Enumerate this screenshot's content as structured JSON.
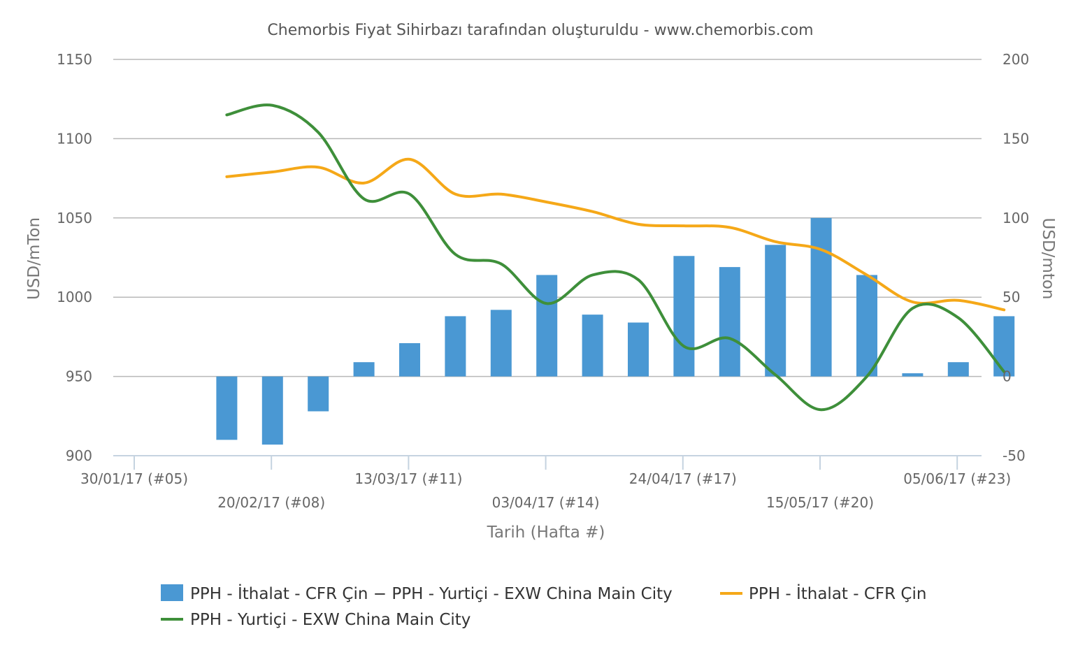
{
  "chart_data": {
    "type": "bar+line",
    "title": "Chemorbis Fiyat Sihirbazı tarafından oluşturuldu - www.chemorbis.com",
    "xlabel": "Tarih (Hafta #)",
    "ylabel_left": "USD/mTon",
    "ylabel_right": "USD/mton",
    "ylim_left": [
      900,
      1150
    ],
    "ylim_right": [
      -50,
      200
    ],
    "yticks_left": [
      "1150",
      "1100",
      "1050",
      "1000",
      "950",
      "900"
    ],
    "yticks_right": [
      "200",
      "150",
      "100",
      "50",
      "0",
      "-50"
    ],
    "xtick_labels": [
      {
        "label": "30/01/17 (#05)",
        "week_index": 0,
        "row": 1
      },
      {
        "label": "20/02/17 (#08)",
        "week_index": 3,
        "row": 2
      },
      {
        "label": "13/03/17 (#11)",
        "week_index": 6,
        "row": 1
      },
      {
        "label": "03/04/17 (#14)",
        "week_index": 9,
        "row": 2
      },
      {
        "label": "24/04/17 (#17)",
        "week_index": 12,
        "row": 1
      },
      {
        "label": "15/05/17 (#20)",
        "week_index": 15,
        "row": 2
      },
      {
        "label": "05/06/17 (#23)",
        "week_index": 18,
        "row": 1
      }
    ],
    "weeks": [
      "#05",
      "#06",
      "#07",
      "#08",
      "#09",
      "#10",
      "#11",
      "#12",
      "#13",
      "#14",
      "#15",
      "#16",
      "#17",
      "#18",
      "#19",
      "#20",
      "#21",
      "#22",
      "#23"
    ],
    "series": [
      {
        "name": "PPH - İthalat - CFR Çin − PPH - Yurtiçi - EXW China Main City",
        "kind": "bar",
        "axis": "right",
        "color": "#4a98d3",
        "values": [
          null,
          -40,
          -43,
          -22,
          9,
          21,
          38,
          42,
          64,
          39,
          34,
          76,
          69,
          83,
          100,
          64,
          2,
          9,
          38
        ]
      },
      {
        "name": "PPH - İthalat - CFR Çin",
        "kind": "line",
        "axis": "left",
        "color": "#f5a818",
        "values": [
          null,
          1076,
          1079,
          1082,
          1072,
          1087,
          1065,
          1065,
          1060,
          1054,
          1046,
          1045,
          1044,
          1035,
          1030,
          1014,
          997,
          998,
          992
        ]
      },
      {
        "name": "PPH - Yurtiçi - EXW China Main City",
        "kind": "line",
        "axis": "left",
        "color": "#3e8f3a",
        "values": [
          null,
          1115,
          1121,
          1104,
          1062,
          1065,
          1027,
          1021,
          996,
          1014,
          1011,
          969,
          974,
          951,
          929,
          950,
          993,
          987,
          953
        ]
      }
    ]
  }
}
